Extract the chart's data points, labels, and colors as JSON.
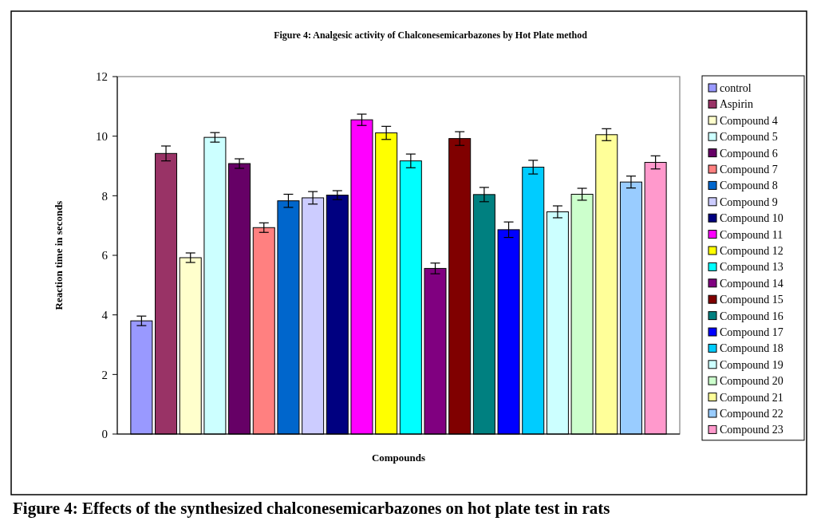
{
  "chart_data": {
    "type": "bar",
    "title": "Figure 4: Analgesic activity of Chalconesemicarbazones by Hot Plate method",
    "xlabel": "Compounds",
    "ylabel": "Reaction time in seconds",
    "categories": [
      null,
      null,
      null,
      null,
      null,
      null,
      null,
      null,
      null,
      null,
      null,
      null,
      null,
      null,
      null,
      null,
      null,
      null,
      null,
      null,
      null,
      null
    ],
    "series": [
      {
        "name": "control",
        "color": "#9999ff",
        "values": [
          3.8,
          null,
          null,
          null,
          null,
          null,
          null,
          null,
          null,
          null,
          null,
          null,
          null,
          null,
          null,
          null,
          null,
          null,
          null,
          null,
          null,
          null
        ],
        "errors": [
          0.16,
          null,
          null,
          null,
          null,
          null,
          null,
          null,
          null,
          null,
          null,
          null,
          null,
          null,
          null,
          null,
          null,
          null,
          null,
          null,
          null,
          null
        ]
      },
      {
        "name": "Aspirin",
        "color": "#993366",
        "values": [
          null,
          9.42,
          null,
          null,
          null,
          null,
          null,
          null,
          null,
          null,
          null,
          null,
          null,
          null,
          null,
          null,
          null,
          null,
          null,
          null,
          null,
          null
        ],
        "errors": [
          null,
          0.25,
          null,
          null,
          null,
          null,
          null,
          null,
          null,
          null,
          null,
          null,
          null,
          null,
          null,
          null,
          null,
          null,
          null,
          null,
          null,
          null
        ]
      },
      {
        "name": "Compound 4",
        "color": "#ffffcc",
        "values": [
          null,
          null,
          5.92,
          null,
          null,
          null,
          null,
          null,
          null,
          null,
          null,
          null,
          null,
          null,
          null,
          null,
          null,
          null,
          null,
          null,
          null,
          null
        ],
        "errors": [
          null,
          null,
          0.16,
          null,
          null,
          null,
          null,
          null,
          null,
          null,
          null,
          null,
          null,
          null,
          null,
          null,
          null,
          null,
          null,
          null,
          null,
          null
        ]
      },
      {
        "name": "Compound 5",
        "color": "#ccffff",
        "values": [
          null,
          null,
          null,
          9.96,
          null,
          null,
          null,
          null,
          null,
          null,
          null,
          null,
          null,
          null,
          null,
          null,
          null,
          null,
          null,
          null,
          null,
          null
        ],
        "errors": [
          null,
          null,
          null,
          0.16,
          null,
          null,
          null,
          null,
          null,
          null,
          null,
          null,
          null,
          null,
          null,
          null,
          null,
          null,
          null,
          null,
          null,
          null
        ]
      },
      {
        "name": "Compound 6",
        "color": "#660066",
        "values": [
          null,
          null,
          null,
          null,
          9.08,
          null,
          null,
          null,
          null,
          null,
          null,
          null,
          null,
          null,
          null,
          null,
          null,
          null,
          null,
          null,
          null,
          null
        ],
        "errors": [
          null,
          null,
          null,
          null,
          0.16,
          null,
          null,
          null,
          null,
          null,
          null,
          null,
          null,
          null,
          null,
          null,
          null,
          null,
          null,
          null,
          null,
          null
        ]
      },
      {
        "name": "Compound 7",
        "color": "#ff8080",
        "values": [
          null,
          null,
          null,
          null,
          null,
          6.93,
          null,
          null,
          null,
          null,
          null,
          null,
          null,
          null,
          null,
          null,
          null,
          null,
          null,
          null,
          null,
          null
        ],
        "errors": [
          null,
          null,
          null,
          null,
          null,
          0.16,
          null,
          null,
          null,
          null,
          null,
          null,
          null,
          null,
          null,
          null,
          null,
          null,
          null,
          null,
          null,
          null
        ]
      },
      {
        "name": "Compound 8",
        "color": "#0066cc",
        "values": [
          null,
          null,
          null,
          null,
          null,
          null,
          7.83,
          null,
          null,
          null,
          null,
          null,
          null,
          null,
          null,
          null,
          null,
          null,
          null,
          null,
          null,
          null
        ],
        "errors": [
          null,
          null,
          null,
          null,
          null,
          null,
          0.22,
          null,
          null,
          null,
          null,
          null,
          null,
          null,
          null,
          null,
          null,
          null,
          null,
          null,
          null,
          null
        ]
      },
      {
        "name": "Compound 9",
        "color": "#ccccff",
        "values": [
          null,
          null,
          null,
          null,
          null,
          null,
          null,
          7.93,
          null,
          null,
          null,
          null,
          null,
          null,
          null,
          null,
          null,
          null,
          null,
          null,
          null,
          null
        ],
        "errors": [
          null,
          null,
          null,
          null,
          null,
          null,
          null,
          0.21,
          null,
          null,
          null,
          null,
          null,
          null,
          null,
          null,
          null,
          null,
          null,
          null,
          null,
          null
        ]
      },
      {
        "name": "Compound 10",
        "color": "#000080",
        "values": [
          null,
          null,
          null,
          null,
          null,
          null,
          null,
          null,
          8.02,
          null,
          null,
          null,
          null,
          null,
          null,
          null,
          null,
          null,
          null,
          null,
          null,
          null
        ],
        "errors": [
          null,
          null,
          null,
          null,
          null,
          null,
          null,
          null,
          0.15,
          null,
          null,
          null,
          null,
          null,
          null,
          null,
          null,
          null,
          null,
          null,
          null,
          null
        ]
      },
      {
        "name": "Compound 11",
        "color": "#ff00ff",
        "values": [
          null,
          null,
          null,
          null,
          null,
          null,
          null,
          null,
          null,
          10.55,
          null,
          null,
          null,
          null,
          null,
          null,
          null,
          null,
          null,
          null,
          null,
          null
        ],
        "errors": [
          null,
          null,
          null,
          null,
          null,
          null,
          null,
          null,
          null,
          0.19,
          null,
          null,
          null,
          null,
          null,
          null,
          null,
          null,
          null,
          null,
          null,
          null
        ]
      },
      {
        "name": "Compound 12",
        "color": "#ffff00",
        "values": [
          null,
          null,
          null,
          null,
          null,
          null,
          null,
          null,
          null,
          null,
          10.11,
          null,
          null,
          null,
          null,
          null,
          null,
          null,
          null,
          null,
          null,
          null
        ],
        "errors": [
          null,
          null,
          null,
          null,
          null,
          null,
          null,
          null,
          null,
          null,
          0.22,
          null,
          null,
          null,
          null,
          null,
          null,
          null,
          null,
          null,
          null,
          null
        ]
      },
      {
        "name": "Compound 13",
        "color": "#00ffff",
        "values": [
          null,
          null,
          null,
          null,
          null,
          null,
          null,
          null,
          null,
          null,
          null,
          9.17,
          null,
          null,
          null,
          null,
          null,
          null,
          null,
          null,
          null,
          null
        ],
        "errors": [
          null,
          null,
          null,
          null,
          null,
          null,
          null,
          null,
          null,
          null,
          null,
          0.23,
          null,
          null,
          null,
          null,
          null,
          null,
          null,
          null,
          null,
          null
        ]
      },
      {
        "name": "Compound 14",
        "color": "#800080",
        "values": [
          null,
          null,
          null,
          null,
          null,
          null,
          null,
          null,
          null,
          null,
          null,
          null,
          5.56,
          null,
          null,
          null,
          null,
          null,
          null,
          null,
          null,
          null
        ],
        "errors": [
          null,
          null,
          null,
          null,
          null,
          null,
          null,
          null,
          null,
          null,
          null,
          null,
          0.18,
          null,
          null,
          null,
          null,
          null,
          null,
          null,
          null,
          null
        ]
      },
      {
        "name": "Compound 15",
        "color": "#800000",
        "values": [
          null,
          null,
          null,
          null,
          null,
          null,
          null,
          null,
          null,
          null,
          null,
          null,
          null,
          9.92,
          null,
          null,
          null,
          null,
          null,
          null,
          null,
          null
        ],
        "errors": [
          null,
          null,
          null,
          null,
          null,
          null,
          null,
          null,
          null,
          null,
          null,
          null,
          null,
          0.23,
          null,
          null,
          null,
          null,
          null,
          null,
          null,
          null
        ]
      },
      {
        "name": "Compound 16",
        "color": "#008080",
        "values": [
          null,
          null,
          null,
          null,
          null,
          null,
          null,
          null,
          null,
          null,
          null,
          null,
          null,
          null,
          8.04,
          null,
          null,
          null,
          null,
          null,
          null,
          null
        ],
        "errors": [
          null,
          null,
          null,
          null,
          null,
          null,
          null,
          null,
          null,
          null,
          null,
          null,
          null,
          null,
          0.24,
          null,
          null,
          null,
          null,
          null,
          null,
          null
        ]
      },
      {
        "name": "Compound 17",
        "color": "#0000ff",
        "values": [
          null,
          null,
          null,
          null,
          null,
          null,
          null,
          null,
          null,
          null,
          null,
          null,
          null,
          null,
          null,
          6.86,
          null,
          null,
          null,
          null,
          null,
          null
        ],
        "errors": [
          null,
          null,
          null,
          null,
          null,
          null,
          null,
          null,
          null,
          null,
          null,
          null,
          null,
          null,
          null,
          0.26,
          null,
          null,
          null,
          null,
          null,
          null
        ]
      },
      {
        "name": "Compound 18",
        "color": "#00ccff",
        "values": [
          null,
          null,
          null,
          null,
          null,
          null,
          null,
          null,
          null,
          null,
          null,
          null,
          null,
          null,
          null,
          null,
          8.96,
          null,
          null,
          null,
          null,
          null
        ],
        "errors": [
          null,
          null,
          null,
          null,
          null,
          null,
          null,
          null,
          null,
          null,
          null,
          null,
          null,
          null,
          null,
          null,
          0.23,
          null,
          null,
          null,
          null,
          null
        ]
      },
      {
        "name": "Compound 19",
        "color": "#ccffff",
        "values": [
          null,
          null,
          null,
          null,
          null,
          null,
          null,
          null,
          null,
          null,
          null,
          null,
          null,
          null,
          null,
          null,
          null,
          7.46,
          null,
          null,
          null,
          null
        ],
        "errors": [
          null,
          null,
          null,
          null,
          null,
          null,
          null,
          null,
          null,
          null,
          null,
          null,
          null,
          null,
          null,
          null,
          null,
          0.2,
          null,
          null,
          null,
          null
        ]
      },
      {
        "name": "Compound 20",
        "color": "#ccffcc",
        "values": [
          null,
          null,
          null,
          null,
          null,
          null,
          null,
          null,
          null,
          null,
          null,
          null,
          null,
          null,
          null,
          null,
          null,
          null,
          8.05,
          null,
          null,
          null
        ],
        "errors": [
          null,
          null,
          null,
          null,
          null,
          null,
          null,
          null,
          null,
          null,
          null,
          null,
          null,
          null,
          null,
          null,
          null,
          null,
          0.2,
          null,
          null,
          null
        ]
      },
      {
        "name": "Compound 21",
        "color": "#ffff99",
        "values": [
          null,
          null,
          null,
          null,
          null,
          null,
          null,
          null,
          null,
          null,
          null,
          null,
          null,
          null,
          null,
          null,
          null,
          null,
          null,
          10.05,
          null,
          null
        ],
        "errors": [
          null,
          null,
          null,
          null,
          null,
          null,
          null,
          null,
          null,
          null,
          null,
          null,
          null,
          null,
          null,
          null,
          null,
          null,
          null,
          0.2,
          null,
          null
        ]
      },
      {
        "name": "Compound 22",
        "color": "#99ccff",
        "values": [
          null,
          null,
          null,
          null,
          null,
          null,
          null,
          null,
          null,
          null,
          null,
          null,
          null,
          null,
          null,
          null,
          null,
          null,
          null,
          null,
          8.46,
          null
        ],
        "errors": [
          null,
          null,
          null,
          null,
          null,
          null,
          null,
          null,
          null,
          null,
          null,
          null,
          null,
          null,
          null,
          null,
          null,
          null,
          null,
          null,
          0.2,
          null
        ]
      },
      {
        "name": "Compound 23",
        "color": "#ff99cc",
        "values": [
          null,
          null,
          null,
          null,
          null,
          null,
          null,
          null,
          null,
          null,
          null,
          null,
          null,
          null,
          null,
          null,
          null,
          null,
          null,
          null,
          null,
          9.12
        ],
        "errors": [
          null,
          null,
          null,
          null,
          null,
          null,
          null,
          null,
          null,
          null,
          null,
          null,
          null,
          null,
          null,
          null,
          null,
          null,
          null,
          null,
          null,
          0.22
        ]
      }
    ],
    "ylim": [
      0,
      12
    ],
    "yticks": [
      0,
      2,
      4,
      6,
      8,
      10,
      12
    ],
    "grid": false,
    "legend": "right",
    "tick_labels": "y",
    "annotations": [
      "Figure 4: Effects of the synthesized chalconesemicarbazones on hot plate test in rats"
    ]
  }
}
